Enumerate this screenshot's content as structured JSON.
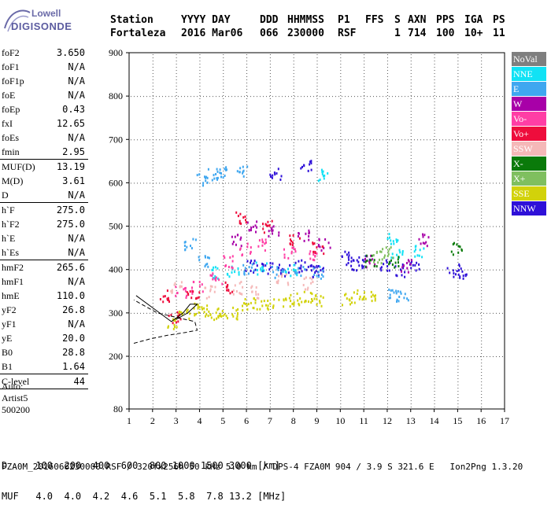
{
  "logo": {
    "top": "Lowell",
    "bottom": "DIGISONDE"
  },
  "header": {
    "row1": [
      "Station",
      "YYYY DAY",
      "DDD",
      "HHMMSS",
      "P1",
      "FFS",
      "S",
      "AXN",
      "PPS",
      "IGA",
      "PS"
    ],
    "row2": [
      "Fortaleza",
      "2016 Mar06",
      "066",
      "230000",
      "RSF",
      "1",
      "714",
      "100",
      "10+",
      "11"
    ]
  },
  "params": [
    {
      "label": "foF2",
      "value": "3.650"
    },
    {
      "label": "foF1",
      "value": "N/A"
    },
    {
      "label": "foF1p",
      "value": "N/A"
    },
    {
      "label": "foE",
      "value": "N/A"
    },
    {
      "label": "foEp",
      "value": "0.43"
    },
    {
      "label": "fxI",
      "value": "12.65"
    },
    {
      "label": "foEs",
      "value": "N/A"
    },
    {
      "label": "fmin",
      "value": "2.95",
      "sep": true
    },
    {
      "label": "MUF(D)",
      "value": "13.19"
    },
    {
      "label": "M(D)",
      "value": "3.61"
    },
    {
      "label": "D",
      "value": "N/A",
      "sep": true
    },
    {
      "label": "h`F",
      "value": "275.0"
    },
    {
      "label": "h`F2",
      "value": "275.0"
    },
    {
      "label": "h`E",
      "value": "N/A"
    },
    {
      "label": "h`Es",
      "value": "N/A",
      "sep": true
    },
    {
      "label": "hmF2",
      "value": "265.6"
    },
    {
      "label": "hmF1",
      "value": "N/A"
    },
    {
      "label": "hmE",
      "value": "110.0"
    },
    {
      "label": "yF2",
      "value": "26.8"
    },
    {
      "label": "yF1",
      "value": "N/A"
    },
    {
      "label": "yE",
      "value": "20.0"
    },
    {
      "label": "B0",
      "value": "28.8"
    },
    {
      "label": "B1",
      "value": "1.64",
      "sep": true
    },
    {
      "label": "C-level",
      "value": "44",
      "sep": true
    }
  ],
  "auto": [
    "Auto:",
    "Artist5",
    "500200"
  ],
  "legend": [
    {
      "label": "NoVal",
      "color": "#7f7f7f"
    },
    {
      "label": "NNE",
      "color": "#11e2f5"
    },
    {
      "label": "E",
      "color": "#3fa7f0"
    },
    {
      "label": "W",
      "color": "#a800a8"
    },
    {
      "label": "Vo-",
      "color": "#ff3ea5"
    },
    {
      "label": "Vo+",
      "color": "#ee0d3c"
    },
    {
      "label": "SSW",
      "color": "#f5b8b8"
    },
    {
      "label": "X-",
      "color": "#0a7a0a"
    },
    {
      "label": "X+",
      "color": "#7fbf5f"
    },
    {
      "label": "SSE",
      "color": "#d2d20a"
    },
    {
      "label": "NNW",
      "color": "#2e10d8"
    }
  ],
  "table": {
    "row1": "D     100  200  400  600  800 1000 1500 3000 [km]",
    "row2": "MUF   4.0  4.0  4.2  4.6  5.1  5.8  7.8 13.2 [MHz]"
  },
  "footer": "FZA0M_2016066230000.RSF / 320fx256h 50 kHz 5.0 km / DPS-4 FZA0M 904 / 3.9 S 321.6 E   Ion2Png 1.3.20",
  "chart_data": {
    "type": "scatter",
    "title": "",
    "xlabel": "",
    "ylabel": "",
    "xlim": [
      1,
      17
    ],
    "ylim": [
      80,
      900
    ],
    "x_ticks": [
      "1",
      "2",
      "3",
      "4",
      "5",
      "6",
      "7",
      "8",
      "9",
      "10",
      "11",
      "12",
      "13",
      "14",
      "15",
      "16",
      "17"
    ],
    "y_ticks": [
      "80",
      "200",
      "300",
      "400",
      "500",
      "600",
      "700",
      "800",
      "900"
    ],
    "grid": true,
    "echo_clusters": [
      {
        "name": "SSE",
        "color": "#d2d20a",
        "points": [
          [
            2.8,
            280
          ],
          [
            3.3,
            300
          ],
          [
            3.8,
            310
          ],
          [
            4.2,
            305
          ],
          [
            4.6,
            300
          ],
          [
            5.0,
            305
          ],
          [
            5.5,
            300
          ],
          [
            6.0,
            320
          ],
          [
            6.5,
            325
          ],
          [
            7.0,
            320
          ],
          [
            7.6,
            330
          ],
          [
            8.1,
            335
          ],
          [
            8.6,
            340
          ],
          [
            9.1,
            330
          ],
          [
            10.3,
            335
          ],
          [
            10.8,
            340
          ],
          [
            11.2,
            340
          ]
        ]
      },
      {
        "name": "NNW",
        "color": "#2e10d8",
        "points": [
          [
            6.2,
            410
          ],
          [
            6.9,
            405
          ],
          [
            7.6,
            400
          ],
          [
            8.3,
            410
          ],
          [
            8.8,
            410
          ],
          [
            9.0,
            395
          ],
          [
            10.2,
            430
          ],
          [
            10.5,
            410
          ],
          [
            11.0,
            420
          ],
          [
            11.9,
            410
          ],
          [
            12.5,
            400
          ],
          [
            13.1,
            410
          ],
          [
            14.8,
            400
          ],
          [
            15.1,
            395
          ],
          [
            7.2,
            622
          ],
          [
            8.5,
            640
          ]
        ]
      },
      {
        "name": "E",
        "color": "#3fa7f0",
        "points": [
          [
            4.1,
            610
          ],
          [
            4.5,
            620
          ],
          [
            5.1,
            625
          ],
          [
            5.8,
            630
          ],
          [
            3.6,
            460
          ],
          [
            4.2,
            420
          ],
          [
            6.1,
            400
          ],
          [
            7.3,
            395
          ],
          [
            8.2,
            400
          ],
          [
            9.0,
            395
          ],
          [
            12.3,
            345
          ],
          [
            12.6,
            340
          ]
        ]
      },
      {
        "name": "NNE",
        "color": "#11e2f5",
        "points": [
          [
            4.5,
            395
          ],
          [
            5.4,
            400
          ],
          [
            6.6,
            405
          ],
          [
            7.9,
            400
          ],
          [
            9.2,
            620
          ],
          [
            12.2,
            470
          ],
          [
            12.4,
            440
          ],
          [
            13.4,
            445
          ]
        ]
      },
      {
        "name": "W",
        "color": "#a800a8",
        "points": [
          [
            5.5,
            470
          ],
          [
            6.2,
            500
          ],
          [
            7.1,
            490
          ],
          [
            8.4,
            480
          ],
          [
            9.3,
            460
          ],
          [
            11.2,
            420
          ],
          [
            12.8,
            410
          ],
          [
            13.5,
            470
          ]
        ]
      },
      {
        "name": "Vo-",
        "color": "#ff3ea5",
        "points": [
          [
            3.2,
            350
          ],
          [
            3.9,
            360
          ],
          [
            4.7,
            380
          ],
          [
            5.2,
            420
          ],
          [
            5.9,
            450
          ],
          [
            6.7,
            460
          ],
          [
            7.8,
            440
          ],
          [
            8.7,
            430
          ]
        ]
      },
      {
        "name": "Vo+",
        "color": "#ee0d3c",
        "points": [
          [
            2.5,
            340
          ],
          [
            2.9,
            290
          ],
          [
            3.7,
            345
          ],
          [
            5.1,
            360
          ],
          [
            5.8,
            520
          ],
          [
            6.8,
            500
          ],
          [
            8.0,
            470
          ],
          [
            9.0,
            450
          ]
        ]
      },
      {
        "name": "SSW",
        "color": "#f5b8b8",
        "points": [
          [
            3.0,
            360
          ],
          [
            4.4,
            350
          ],
          [
            5.6,
            360
          ],
          [
            6.3,
            350
          ],
          [
            7.5,
            380
          ],
          [
            8.6,
            370
          ]
        ]
      },
      {
        "name": "X-",
        "color": "#0a7a0a",
        "points": [
          [
            11.3,
            420
          ],
          [
            12.2,
            420
          ],
          [
            14.9,
            450
          ]
        ]
      },
      {
        "name": "X+",
        "color": "#7fbf5f",
        "points": [
          [
            11.6,
            430
          ],
          [
            12.0,
            440
          ]
        ]
      }
    ],
    "trace_solid": [
      [
        1.3,
        340
      ],
      [
        2.3,
        300
      ],
      [
        2.8,
        280
      ],
      [
        3.3,
        300
      ],
      [
        3.6,
        320
      ],
      [
        3.9,
        320
      ],
      [
        3.5,
        300
      ],
      [
        3.0,
        285
      ]
    ],
    "trace_dashed": [
      [
        1.2,
        230
      ],
      [
        1.9,
        240
      ],
      [
        2.6,
        248
      ],
      [
        3.4,
        255
      ],
      [
        3.9,
        260
      ],
      [
        3.8,
        280
      ],
      [
        3.0,
        290
      ],
      [
        2.2,
        300
      ],
      [
        1.2,
        330
      ]
    ]
  }
}
